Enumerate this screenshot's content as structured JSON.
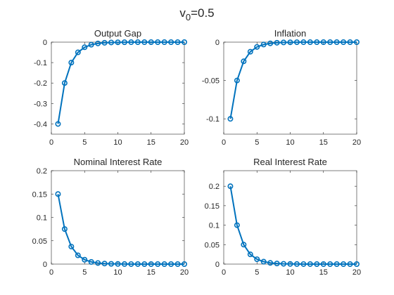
{
  "figure": {
    "title_main": "v",
    "title_sub": "0",
    "title_rest": "=0.5"
  },
  "colors": {
    "series": "#0072BD",
    "axis": "#262626",
    "background": "#ffffff"
  },
  "chart_data": [
    {
      "type": "line",
      "title": "Output Gap",
      "xlabel": "",
      "ylabel": "",
      "x": [
        1,
        2,
        3,
        4,
        5,
        6,
        7,
        8,
        9,
        10,
        11,
        12,
        13,
        14,
        15,
        16,
        17,
        18,
        19,
        20
      ],
      "series": [
        {
          "name": "",
          "marker": "circle",
          "values": [
            -0.4,
            -0.2,
            -0.1,
            -0.05,
            -0.025,
            -0.0125,
            -0.00625,
            -0.003125,
            -0.0015625,
            -0.00078125,
            -0.0003906,
            -0.0001953,
            -9.77e-05,
            -4.88e-05,
            -2.44e-05,
            -1.22e-05,
            -6.1e-06,
            -3.1e-06,
            -1.5e-06,
            -8e-07
          ]
        }
      ],
      "xlim": [
        0,
        20
      ],
      "ylim": [
        -0.45,
        0
      ],
      "xticks": [
        0,
        5,
        10,
        15,
        20
      ],
      "xtick_labels": [
        "0",
        "5",
        "10",
        "15",
        "20"
      ],
      "yticks": [
        -0.4,
        -0.3,
        -0.2,
        -0.1,
        0
      ],
      "ytick_labels": [
        "-0.4",
        "-0.3",
        "-0.2",
        "-0.1",
        "0"
      ],
      "grid": false,
      "legend": "none"
    },
    {
      "type": "line",
      "title": "Inflation",
      "xlabel": "",
      "ylabel": "",
      "x": [
        1,
        2,
        3,
        4,
        5,
        6,
        7,
        8,
        9,
        10,
        11,
        12,
        13,
        14,
        15,
        16,
        17,
        18,
        19,
        20
      ],
      "series": [
        {
          "name": "",
          "marker": "circle",
          "values": [
            -0.1,
            -0.05,
            -0.025,
            -0.0125,
            -0.00625,
            -0.003125,
            -0.0015625,
            -0.00078125,
            -0.0003906,
            -0.0001953,
            -9.77e-05,
            -4.88e-05,
            -2.44e-05,
            -1.22e-05,
            -6.1e-06,
            -3.1e-06,
            -1.5e-06,
            -8e-07,
            -4e-07,
            -2e-07
          ]
        }
      ],
      "xlim": [
        0,
        20
      ],
      "ylim": [
        -0.12,
        0
      ],
      "xticks": [
        0,
        5,
        10,
        15,
        20
      ],
      "xtick_labels": [
        "0",
        "5",
        "10",
        "15",
        "20"
      ],
      "yticks": [
        -0.1,
        -0.05,
        0
      ],
      "ytick_labels": [
        "-0.1",
        "-0.05",
        "0"
      ],
      "grid": false,
      "legend": "none"
    },
    {
      "type": "line",
      "title": "Nominal Interest Rate",
      "xlabel": "",
      "ylabel": "",
      "x": [
        1,
        2,
        3,
        4,
        5,
        6,
        7,
        8,
        9,
        10,
        11,
        12,
        13,
        14,
        15,
        16,
        17,
        18,
        19,
        20
      ],
      "series": [
        {
          "name": "",
          "marker": "circle",
          "values": [
            0.15,
            0.075,
            0.0375,
            0.01875,
            0.009375,
            0.0046875,
            0.0023438,
            0.0011719,
            0.0005859,
            0.000293,
            0.0001465,
            7.32e-05,
            3.66e-05,
            1.83e-05,
            9.2e-06,
            4.6e-06,
            2.3e-06,
            1.1e-06,
            6e-07,
            3e-07
          ]
        }
      ],
      "xlim": [
        0,
        20
      ],
      "ylim": [
        0,
        0.2
      ],
      "xticks": [
        0,
        5,
        10,
        15,
        20
      ],
      "xtick_labels": [
        "0",
        "5",
        "10",
        "15",
        "20"
      ],
      "yticks": [
        0,
        0.05,
        0.1,
        0.15,
        0.2
      ],
      "ytick_labels": [
        "0",
        "0.05",
        "0.1",
        "0.15",
        "0.2"
      ],
      "grid": false,
      "legend": "none"
    },
    {
      "type": "line",
      "title": "Real Interest Rate",
      "xlabel": "",
      "ylabel": "",
      "x": [
        1,
        2,
        3,
        4,
        5,
        6,
        7,
        8,
        9,
        10,
        11,
        12,
        13,
        14,
        15,
        16,
        17,
        18,
        19,
        20
      ],
      "series": [
        {
          "name": "",
          "marker": "circle",
          "values": [
            0.2,
            0.1,
            0.05,
            0.025,
            0.0125,
            0.00625,
            0.003125,
            0.0015625,
            0.00078125,
            0.0003906,
            0.0001953,
            9.77e-05,
            4.88e-05,
            2.44e-05,
            1.22e-05,
            6.1e-06,
            3.1e-06,
            1.5e-06,
            8e-07,
            4e-07
          ]
        }
      ],
      "xlim": [
        0,
        20
      ],
      "ylim": [
        0,
        0.24
      ],
      "xticks": [
        0,
        5,
        10,
        15,
        20
      ],
      "xtick_labels": [
        "0",
        "5",
        "10",
        "15",
        "20"
      ],
      "yticks": [
        0,
        0.05,
        0.1,
        0.15,
        0.2
      ],
      "ytick_labels": [
        "0",
        "0.05",
        "0.1",
        "0.15",
        "0.2"
      ],
      "grid": false,
      "legend": "none"
    }
  ]
}
